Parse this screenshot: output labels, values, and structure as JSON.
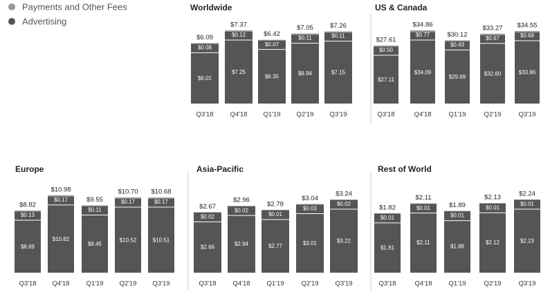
{
  "legend": [
    {
      "name": "Payments and Other Fees",
      "color": "#9a9a9a"
    },
    {
      "name": "Advertising",
      "color": "#555555"
    }
  ],
  "chart_data": [
    {
      "type": "bar",
      "title": "Worldwide",
      "categories": [
        "Q3'18",
        "Q4'18",
        "Q1'19",
        "Q2'19",
        "Q3'19"
      ],
      "series": [
        {
          "values": [
            0.08,
            0.12,
            0.07,
            0.11,
            0.11
          ],
          "value_labels": [
            "$0.08",
            "$0.12",
            "$0.07",
            "$0.11",
            "$0.11"
          ]
        },
        {
          "values": [
            6.01,
            7.25,
            6.35,
            6.94,
            7.15
          ],
          "value_labels": [
            "$6.01",
            "$7.25",
            "$6.35",
            "$6.94",
            "$7.15"
          ]
        }
      ],
      "totals": [
        6.09,
        7.37,
        6.42,
        7.05,
        7.26
      ],
      "total_labels": [
        "$6.09",
        "$7.37",
        "$6.42",
        "$7.05",
        "$7.26"
      ]
    },
    {
      "type": "bar",
      "title": "US & Canada",
      "categories": [
        "Q3'18",
        "Q4'18",
        "Q1'19",
        "Q2'19",
        "Q3'19"
      ],
      "series": [
        {
          "values": [
            0.5,
            0.77,
            0.43,
            0.67,
            0.69
          ],
          "value_labels": [
            "$0.50",
            "$0.77",
            "$0.43",
            "$0.67",
            "$0.69"
          ]
        },
        {
          "values": [
            27.11,
            34.09,
            29.69,
            32.6,
            33.86
          ],
          "value_labels": [
            "$27.11",
            "$34.09",
            "$29.69",
            "$32.60",
            "$33.86"
          ]
        }
      ],
      "totals": [
        27.61,
        34.86,
        30.12,
        33.27,
        34.55
      ],
      "total_labels": [
        "$27.61",
        "$34.86",
        "$30.12",
        "$33.27",
        "$34.55"
      ]
    },
    {
      "type": "bar",
      "title": "Europe",
      "categories": [
        "Q3'18",
        "Q4'18",
        "Q1'19",
        "Q2'19",
        "Q3'19"
      ],
      "series": [
        {
          "values": [
            0.13,
            0.17,
            0.11,
            0.17,
            0.17
          ],
          "value_labels": [
            "$0.13",
            "$0.17",
            "$0.11",
            "$0.17",
            "$0.17"
          ]
        },
        {
          "values": [
            8.69,
            10.82,
            9.45,
            10.52,
            10.51
          ],
          "value_labels": [
            "$8.69",
            "$10.82",
            "$9.45",
            "$10.52",
            "$10.51"
          ]
        }
      ],
      "totals": [
        8.82,
        10.98,
        9.55,
        10.7,
        10.68
      ],
      "total_labels": [
        "$8.82",
        "$10.98",
        "$9.55",
        "$10.70",
        "$10.68"
      ]
    },
    {
      "type": "bar",
      "title": "Asia-Pacific",
      "categories": [
        "Q3'18",
        "Q4'18",
        "Q1'19",
        "Q2'19",
        "Q3'19"
      ],
      "series": [
        {
          "values": [
            0.02,
            0.02,
            0.01,
            0.03,
            0.02
          ],
          "value_labels": [
            "$0.02",
            "$0.02",
            "$0.01",
            "$0.03",
            "$0.02"
          ]
        },
        {
          "values": [
            2.66,
            2.94,
            2.77,
            3.01,
            3.22
          ],
          "value_labels": [
            "$2.66",
            "$2.94",
            "$2.77",
            "$3.01",
            "$3.22"
          ]
        }
      ],
      "totals": [
        2.67,
        2.96,
        2.78,
        3.04,
        3.24
      ],
      "total_labels": [
        "$2.67",
        "$2.96",
        "$2.78",
        "$3.04",
        "$3.24"
      ]
    },
    {
      "type": "bar",
      "title": "Rest of World",
      "categories": [
        "Q3'18",
        "Q4'18",
        "Q1'19",
        "Q2'19",
        "Q3'19"
      ],
      "series": [
        {
          "values": [
            0.01,
            0.01,
            0.01,
            0.01,
            0.01
          ],
          "value_labels": [
            "$0.01",
            "$0.01",
            "$0.01",
            "$0.01",
            "$0.01"
          ]
        },
        {
          "values": [
            1.81,
            2.11,
            1.88,
            2.12,
            2.23
          ],
          "value_labels": [
            "$1.81",
            "$2.11",
            "$1.88",
            "$2.12",
            "$2.23"
          ]
        }
      ],
      "totals": [
        1.82,
        2.11,
        1.89,
        2.13,
        2.24
      ],
      "total_labels": [
        "$1.82",
        "$2.11",
        "$1.89",
        "$2.13",
        "$2.24"
      ]
    }
  ]
}
